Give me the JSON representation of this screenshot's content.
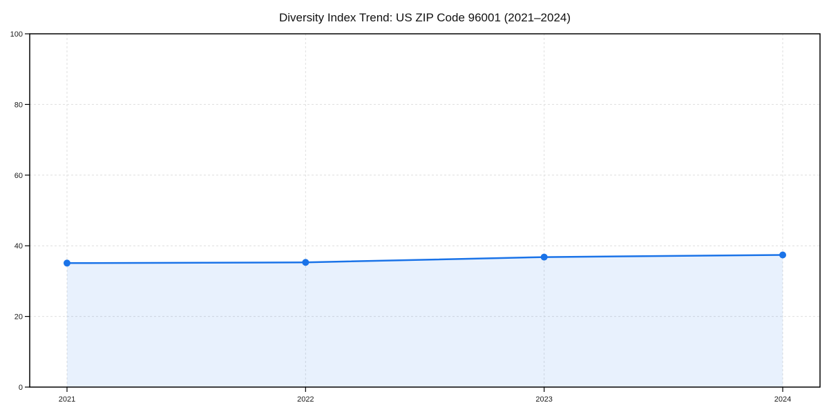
{
  "page": {
    "background": "#ffffff"
  },
  "chart_data": {
    "type": "area",
    "title": "Diversity Index Trend: US ZIP Code 96001 (2021–2024)",
    "categories": [
      "2021",
      "2022",
      "2023",
      "2024"
    ],
    "series": [
      {
        "name": "Diversity Index",
        "values": [
          35.1,
          35.3,
          36.8,
          37.4
        ]
      }
    ],
    "xlabel": "",
    "ylabel": "",
    "ylim": [
      0,
      100
    ],
    "yticks": [
      0,
      20,
      40,
      60,
      80,
      100
    ],
    "grid": "dashed-both-axes",
    "legend_position": "none",
    "line_color": "#1a73e8",
    "marker_color": "#1a73e8",
    "fill_color": "#1a73e8",
    "fill_opacity": 0.1,
    "gridline_color": "#dedede",
    "axis_color": "#000000",
    "title_color": "#111111",
    "tick_label_color": "#1a1a1a"
  }
}
